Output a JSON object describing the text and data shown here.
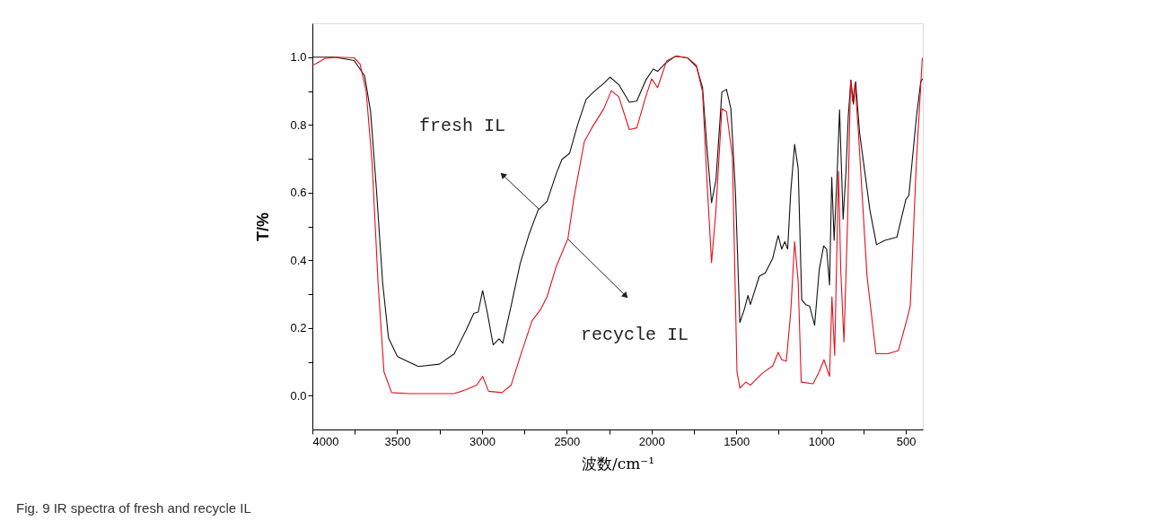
{
  "chart_data": {
    "type": "line",
    "xlabel": "波数/cm⁻¹",
    "ylabel": "T/%",
    "xlim": [
      4000,
      400
    ],
    "ylim": [
      -0.1,
      1.1
    ],
    "xticks": [
      4000,
      {
        "value": 3750,
        "label": null
      },
      3500,
      {
        "value": 3250,
        "label": null
      },
      3000,
      {
        "value": 2750,
        "label": null
      },
      2500,
      {
        "value": 2250,
        "label": null
      },
      2000,
      {
        "value": 1750,
        "label": null
      },
      1500,
      {
        "value": 1250,
        "label": null
      },
      1000,
      {
        "value": 750,
        "label": null
      },
      500
    ],
    "yticks": [
      {
        "value": 0,
        "label": "0.0"
      },
      {
        "value": 0.1,
        "label": null
      },
      {
        "value": 0.2,
        "label": "0.2"
      },
      {
        "value": 0.3,
        "label": null
      },
      {
        "value": 0.4,
        "label": "0.4"
      },
      {
        "value": 0.5,
        "label": null
      },
      {
        "value": 0.6,
        "label": "0.6"
      },
      {
        "value": 0.7,
        "label": null
      },
      {
        "value": 0.8,
        "label": "0.8"
      },
      {
        "value": 0.9,
        "label": null
      },
      {
        "value": 1.0,
        "label": "1.0"
      }
    ],
    "grid": false,
    "legend": false,
    "marker": "none",
    "line_style": "solid",
    "series": [
      {
        "color": "#111111",
        "x": [
          4000,
          3869,
          3754,
          3692,
          3657,
          3621,
          3586,
          3551,
          3498,
          3375,
          3251,
          3163,
          3093,
          3048,
          3022,
          2996,
          2969,
          2934,
          2899,
          2877,
          2828,
          2775,
          2722,
          2669,
          2616,
          2563,
          2528,
          2483,
          2439,
          2386,
          2342,
          2281,
          2245,
          2193,
          2131,
          2087,
          2034,
          1990,
          1964,
          1920,
          1858,
          1788,
          1735,
          1699,
          1673,
          1646,
          1620,
          1585,
          1558,
          1532,
          1505,
          1479,
          1452,
          1431,
          1417,
          1364,
          1329,
          1285,
          1253,
          1232,
          1214,
          1197,
          1179,
          1156,
          1135,
          1114,
          1091,
          1068,
          1038,
          1011,
          985,
          967,
          950,
          937,
          923,
          906,
          891,
          870,
          853,
          839,
          824,
          809,
          796,
          773,
          712,
          673,
          623,
          553,
          500,
          482,
          438,
          412,
          401
        ],
        "values": [
          1.0,
          1.0,
          0.99,
          0.945,
          0.84,
          0.6,
          0.335,
          0.17,
          0.115,
          0.086,
          0.093,
          0.124,
          0.194,
          0.243,
          0.247,
          0.31,
          0.247,
          0.15,
          0.168,
          0.155,
          0.265,
          0.389,
          0.477,
          0.548,
          0.574,
          0.654,
          0.698,
          0.716,
          0.795,
          0.875,
          0.897,
          0.923,
          0.941,
          0.919,
          0.867,
          0.87,
          0.932,
          0.965,
          0.958,
          0.981,
          1.003,
          0.998,
          0.972,
          0.91,
          0.733,
          0.57,
          0.636,
          0.897,
          0.905,
          0.848,
          0.601,
          0.216,
          0.256,
          0.296,
          0.269,
          0.353,
          0.362,
          0.406,
          0.473,
          0.433,
          0.455,
          0.433,
          0.601,
          0.742,
          0.671,
          0.283,
          0.269,
          0.265,
          0.208,
          0.371,
          0.442,
          0.433,
          0.327,
          0.645,
          0.459,
          0.645,
          0.844,
          0.521,
          0.663,
          0.83,
          0.932,
          0.861,
          0.928,
          0.777,
          0.548,
          0.446,
          0.459,
          0.468,
          0.579,
          0.592,
          0.822,
          0.928,
          0.936
        ]
      },
      {
        "color": "#e3101c",
        "x": [
          4000,
          3979,
          3926,
          3855,
          3754,
          3719,
          3683,
          3648,
          3613,
          3578,
          3533,
          3428,
          3163,
          3093,
          3031,
          2996,
          2961,
          2881,
          2828,
          2775,
          2705,
          2652,
          2616,
          2563,
          2493,
          2458,
          2396,
          2352,
          2281,
          2237,
          2193,
          2131,
          2087,
          2034,
          1999,
          1964,
          1911,
          1858,
          1788,
          1735,
          1699,
          1673,
          1646,
          1620,
          1585,
          1558,
          1523,
          1496,
          1479,
          1444,
          1417,
          1347,
          1285,
          1253,
          1232,
          1205,
          1179,
          1156,
          1135,
          1117,
          1047,
          1011,
          983,
          950,
          936,
          920,
          897,
          884,
          865,
          844,
          826,
          814,
          800,
          782,
          729,
          676,
          606,
          544,
          491,
          474,
          438,
          403
        ],
        "values": [
          0.976,
          0.981,
          0.996,
          1.0,
          0.998,
          0.98,
          0.9,
          0.689,
          0.336,
          0.071,
          0.009,
          0.006,
          0.006,
          0.018,
          0.031,
          0.057,
          0.013,
          0.009,
          0.031,
          0.115,
          0.221,
          0.256,
          0.292,
          0.38,
          0.464,
          0.583,
          0.751,
          0.791,
          0.848,
          0.901,
          0.883,
          0.786,
          0.791,
          0.883,
          0.936,
          0.91,
          0.989,
          1.003,
          0.998,
          0.976,
          0.897,
          0.636,
          0.393,
          0.548,
          0.848,
          0.839,
          0.707,
          0.071,
          0.022,
          0.04,
          0.031,
          0.066,
          0.088,
          0.128,
          0.106,
          0.102,
          0.247,
          0.455,
          0.336,
          0.04,
          0.035,
          0.071,
          0.106,
          0.057,
          0.292,
          0.119,
          0.663,
          0.371,
          0.159,
          0.512,
          0.932,
          0.87,
          0.923,
          0.795,
          0.353,
          0.124,
          0.124,
          0.133,
          0.23,
          0.265,
          0.689,
          0.998
        ]
      }
    ],
    "annotations": [
      "fresh IL",
      "recycle IL",
      "Fig. 9 IR spectra of fresh and recycle IL"
    ]
  }
}
